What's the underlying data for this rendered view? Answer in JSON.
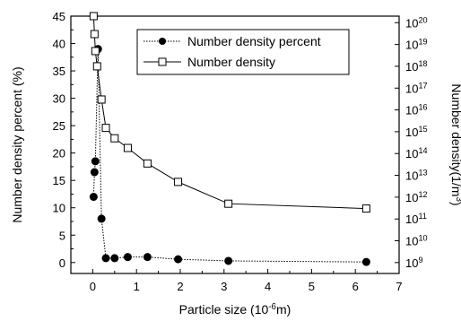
{
  "chart_data": {
    "type": "line",
    "xlabel": "Particle size (10^-6m)",
    "ylabel_left": "Number density percent (%)",
    "ylabel_right": "Number density(1/m^3)",
    "x_ticks": [
      "0",
      "1",
      "2",
      "3",
      "4",
      "5",
      "6",
      "7"
    ],
    "y_left_ticks": [
      "0",
      "5",
      "10",
      "15",
      "20",
      "25",
      "30",
      "35",
      "40",
      "45"
    ],
    "y_right_ticks": [
      "10^9",
      "10^10",
      "10^11",
      "10^12",
      "10^13",
      "10^14",
      "10^15",
      "10^16",
      "10^17",
      "10^18",
      "10^19",
      "10^20"
    ],
    "xlim": [
      -0.5,
      7
    ],
    "ylim_left": [
      -2,
      45
    ],
    "ylim_right_log10": [
      8.5,
      20.3
    ],
    "legend_position": "top-right",
    "series": [
      {
        "name": "Number density percent",
        "axis": "left",
        "marker": "filled-circle",
        "line_style": "dotted",
        "x": [
          0.02,
          0.04,
          0.06,
          0.12,
          0.2,
          0.3,
          0.5,
          0.8,
          1.25,
          1.95,
          3.1,
          6.25
        ],
        "y": [
          12.0,
          16.5,
          18.5,
          39.0,
          8.0,
          0.8,
          0.8,
          1.0,
          1.0,
          0.6,
          0.3,
          0.1
        ]
      },
      {
        "name": "Number density",
        "axis": "right",
        "scale": "log",
        "marker": "open-square",
        "line_style": "solid",
        "x": [
          0.02,
          0.04,
          0.06,
          0.1,
          0.2,
          0.3,
          0.5,
          0.8,
          1.25,
          1.95,
          3.1,
          6.25
        ],
        "y": [
          2e+20,
          3e+19,
          5e+18,
          1e+18,
          3e+16,
          1500000000000000.0,
          500000000000000.0,
          180000000000000.0,
          35000000000000.0,
          5000000000000.0,
          500000000000.0,
          300000000000.0
        ]
      }
    ]
  }
}
